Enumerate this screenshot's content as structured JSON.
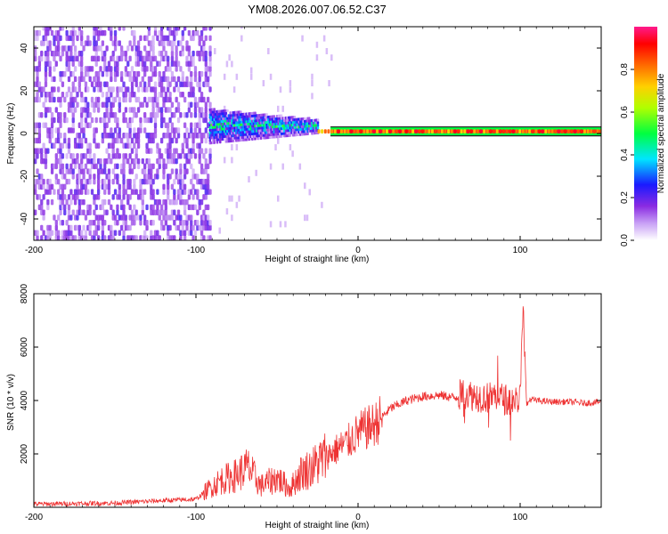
{
  "title": "YM08.2026.007.06.52.C37",
  "chart_data": [
    {
      "type": "heatmap",
      "title": "YM08.2026.007.06.52.C37",
      "xlabel": "Height of straight line (km)",
      "ylabel": "Frequency (Hz)",
      "xlim": [
        -200,
        150
      ],
      "ylim": [
        -50,
        50
      ],
      "xticks": [
        "-200",
        "-100",
        "0",
        "100"
      ],
      "yticks": [
        "-40",
        "-20",
        "0",
        "20",
        "40"
      ],
      "colorbar": {
        "label": "Normalized spectral amplitude",
        "range": [
          0,
          1
        ],
        "ticks": [
          "0.0",
          "0.2",
          "0.4",
          "0.6",
          "0.8"
        ],
        "colors": [
          "#ffffff",
          "#8a2be2",
          "#0000ff",
          "#00e5ff",
          "#00ff00",
          "#ffff00",
          "#ff8c00",
          "#ff0000",
          "#ff1493"
        ]
      },
      "regions": [
        {
          "name": "noise",
          "x_range": [
            -200,
            -92
          ],
          "freq_range": [
            -50,
            50
          ],
          "amplitude": 0.12
        },
        {
          "name": "transition",
          "x_range": [
            -92,
            -25
          ],
          "freq_center": 3,
          "freq_halfwidth": 8,
          "amplitude": 0.45
        },
        {
          "name": "signal",
          "x_range": [
            -25,
            150
          ],
          "freq_center": 1,
          "freq_halfwidth": 1.5,
          "amplitude": 0.95
        }
      ]
    },
    {
      "type": "line",
      "xlabel": "Height of straight line (km)",
      "ylabel": "SNR (10 * v/v)",
      "xlim": [
        -200,
        150
      ],
      "ylim": [
        0,
        8000
      ],
      "xticks": [
        "-200",
        "-100",
        "0",
        "100"
      ],
      "yticks": [
        "2000",
        "4000",
        "6000",
        "8000"
      ],
      "series": [
        {
          "name": "SNR",
          "color": "#ee3333",
          "x": [
            -200,
            -150,
            -121,
            -100,
            -92,
            -85,
            -75,
            -68,
            -60,
            -50,
            -42,
            -35,
            -28,
            -20,
            -10,
            -5,
            0,
            10,
            20,
            30,
            40,
            50,
            60,
            65,
            70,
            75,
            80,
            85,
            90,
            95,
            100,
            102,
            104,
            106,
            110,
            120,
            130,
            140,
            150
          ],
          "y": [
            120,
            160,
            250,
            300,
            700,
            1000,
            1200,
            1500,
            800,
            1100,
            700,
            1300,
            1500,
            1900,
            2300,
            2500,
            2800,
            3100,
            3700,
            4000,
            4150,
            4200,
            4100,
            4300,
            4200,
            4150,
            4100,
            4200,
            4050,
            4000,
            4100,
            7500,
            3800,
            4050,
            4000,
            3950,
            3950,
            3900,
            3950
          ],
          "annotations_noise": "high-frequency fluctuation throughout"
        }
      ]
    }
  ]
}
